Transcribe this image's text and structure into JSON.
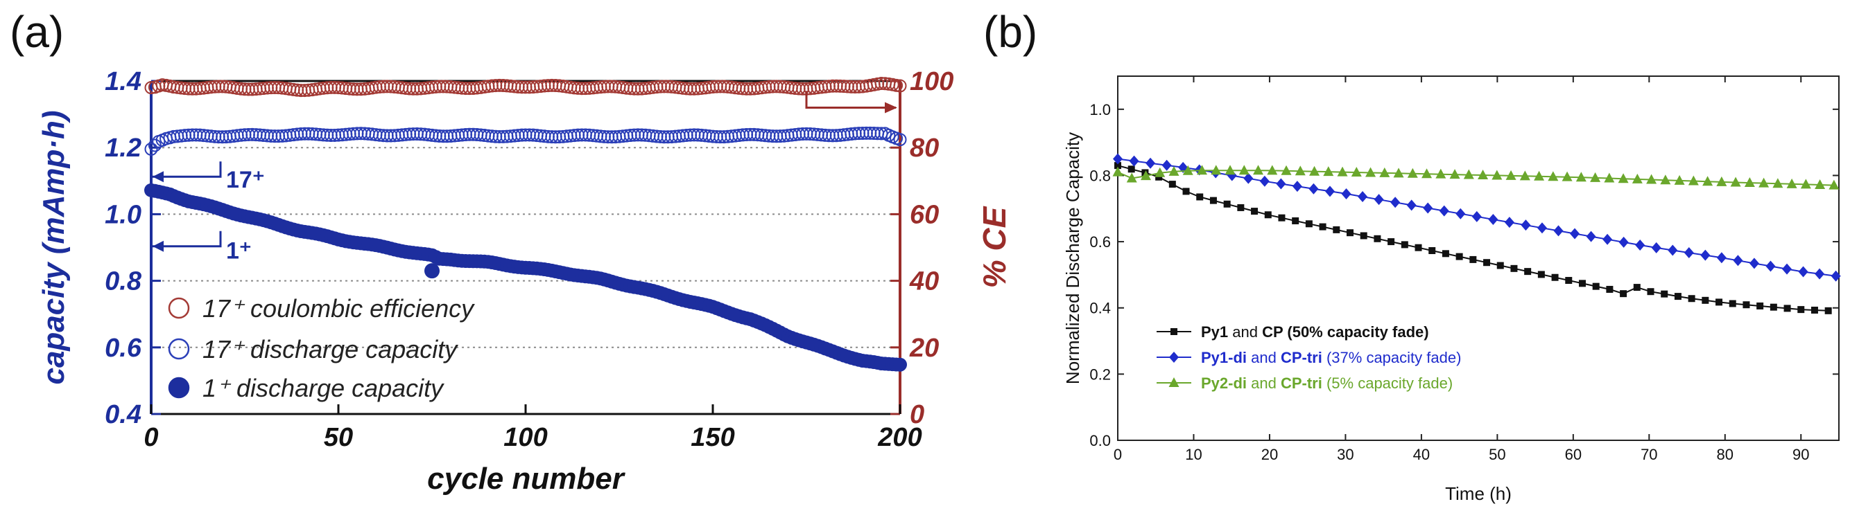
{
  "panels": {
    "a": "(a)",
    "b": "(b)"
  },
  "chart_data": [
    {
      "id": "a",
      "type": "scatter",
      "title": "",
      "xlabel": "cycle number",
      "ylabel": "capacity (mAmp·h)",
      "ylabel_right": "% CE",
      "xlim": [
        0,
        200
      ],
      "ylim": [
        0.4,
        1.4
      ],
      "ylim_right": [
        0,
        100
      ],
      "xticks": [
        "0",
        "50",
        "100",
        "150",
        "200"
      ],
      "yticks": [
        "0.4",
        "0.6",
        "0.8",
        "1.0",
        "1.2",
        "1.4"
      ],
      "yticks_right": [
        "0",
        "20",
        "40",
        "60",
        "80",
        "100"
      ],
      "grid": "horizontal dotted",
      "legend_position": "bottom-left",
      "series": [
        {
          "name": "17⁺ coulombic efficiency",
          "axis": "right",
          "marker": "open-circle",
          "color": "#a33a35",
          "x": [
            1,
            3,
            6,
            10,
            20,
            40,
            60,
            80,
            100,
            120,
            140,
            160,
            180,
            195,
            199
          ],
          "values": [
            98,
            98.5,
            98,
            98,
            98,
            97.5,
            98,
            98,
            98.5,
            98,
            98,
            98,
            98,
            99,
            98.5
          ]
        },
        {
          "name": "17⁺ discharge capacity",
          "axis": "left",
          "marker": "open-circle",
          "color": "#2b3fb8",
          "x": [
            0,
            2,
            4,
            6,
            10,
            20,
            50,
            100,
            150,
            190,
            196,
            200
          ],
          "values": [
            1.195,
            1.22,
            1.23,
            1.235,
            1.235,
            1.235,
            1.24,
            1.235,
            1.235,
            1.24,
            1.245,
            1.225
          ]
        },
        {
          "name": "1⁺ discharge capacity",
          "axis": "left",
          "marker": "filled-circle",
          "color": "#1d2e9e",
          "x": [
            0,
            5,
            10,
            20,
            30,
            40,
            50,
            60,
            70,
            75,
            77,
            80,
            90,
            100,
            110,
            120,
            130,
            140,
            150,
            160,
            170,
            180,
            190,
            195,
            200
          ],
          "values": [
            1.07,
            1.06,
            1.04,
            1.01,
            0.98,
            0.95,
            0.925,
            0.905,
            0.885,
            0.875,
            0.865,
            0.865,
            0.855,
            0.84,
            0.825,
            0.805,
            0.78,
            0.75,
            0.72,
            0.685,
            0.635,
            0.595,
            0.56,
            0.55,
            0.55
          ]
        }
      ],
      "outlier": {
        "series": "1⁺ discharge capacity",
        "x": 75,
        "value": 0.83
      },
      "annotations": {
        "label_17": "17⁺",
        "label_1": "1⁺",
        "value_17": 1.2,
        "value_1": 1.07
      }
    },
    {
      "id": "b",
      "type": "line",
      "title": "",
      "xlabel": "Time (h)",
      "ylabel": "Normalized Discharge Capacity",
      "xlim": [
        0,
        95
      ],
      "ylim": [
        0.0,
        1.1
      ],
      "xticks": [
        "0",
        "10",
        "20",
        "30",
        "40",
        "50",
        "60",
        "70",
        "80",
        "90"
      ],
      "yticks": [
        "0.0",
        "0.2",
        "0.4",
        "0.6",
        "0.8",
        "1.0"
      ],
      "legend_position": "bottom-left",
      "series": [
        {
          "name": "Py1 and CP",
          "legend_parts": [
            [
              "Py1",
              "b"
            ],
            [
              " and ",
              "n"
            ],
            [
              "CP",
              "b"
            ],
            [
              " (50% capacity fade)",
              "b"
            ]
          ],
          "marker": "square",
          "color": "#111111",
          "x": [
            0,
            5,
            10,
            15,
            20,
            25,
            30,
            35,
            40,
            45,
            50,
            55,
            60,
            65,
            67,
            68,
            70,
            75,
            80,
            85,
            90,
            95
          ],
          "values": [
            0.83,
            0.8,
            0.74,
            0.71,
            0.68,
            0.655,
            0.63,
            0.605,
            0.58,
            0.555,
            0.53,
            0.505,
            0.48,
            0.455,
            0.44,
            0.465,
            0.45,
            0.43,
            0.415,
            0.405,
            0.395,
            0.39
          ]
        },
        {
          "name": "Py1-di and CP-tri",
          "legend_parts": [
            [
              "Py1-di",
              "b"
            ],
            [
              " and ",
              "n"
            ],
            [
              "CP-tri",
              "b"
            ],
            [
              " (37% capacity fade)",
              "n"
            ]
          ],
          "marker": "diamond",
          "color": "#1f2ccc",
          "x": [
            0,
            10,
            20,
            30,
            40,
            50,
            60,
            70,
            80,
            90,
            95
          ],
          "values": [
            0.85,
            0.82,
            0.78,
            0.745,
            0.705,
            0.665,
            0.625,
            0.585,
            0.55,
            0.51,
            0.495
          ]
        },
        {
          "name": "Py2-di and CP-tri",
          "legend_parts": [
            [
              "Py2-di",
              "b"
            ],
            [
              " and ",
              "n"
            ],
            [
              "CP-tri",
              "b"
            ],
            [
              " (5% capacity fade)",
              "n"
            ]
          ],
          "marker": "triangle",
          "color": "#6aa72c",
          "x": [
            0,
            2,
            4,
            6,
            10,
            20,
            40,
            60,
            80,
            95
          ],
          "values": [
            0.81,
            0.79,
            0.8,
            0.81,
            0.815,
            0.815,
            0.805,
            0.795,
            0.78,
            0.77
          ]
        }
      ]
    }
  ]
}
